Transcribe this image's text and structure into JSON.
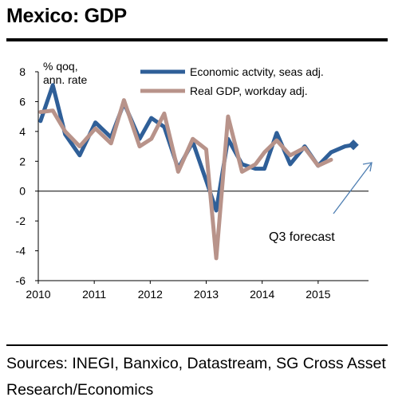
{
  "title": "Mexico: GDP",
  "source": "Sources: INEGI, Banxico, Datastream, SG Cross Asset Research/Economics",
  "chart_data": {
    "type": "line",
    "ylabel": "% qoq, ann. rate",
    "ylabel_lines": [
      "% qoq,",
      "ann. rate"
    ],
    "ylim": [
      -6,
      8
    ],
    "yticks": [
      8,
      6,
      4,
      2,
      0,
      -2,
      -4,
      -6
    ],
    "xlim": [
      2010,
      2015.9
    ],
    "xticks": [
      2010,
      2011,
      2012,
      2013,
      2014,
      2015
    ],
    "legend_position": "top",
    "series": [
      {
        "name": "Economic actvity,  seas adj.",
        "color": "#2f5f98",
        "x": [
          2010.04,
          2010.26,
          2010.48,
          2010.74,
          2011.02,
          2011.3,
          2011.53,
          2011.81,
          2012.02,
          2012.25,
          2012.5,
          2012.76,
          2013.0,
          2013.18,
          2013.39,
          2013.64,
          2013.88,
          2014.04,
          2014.26,
          2014.5,
          2014.76,
          2015.0,
          2015.23,
          2015.48,
          2015.63
        ],
        "y": [
          4.7,
          7.1,
          3.8,
          2.4,
          4.6,
          3.6,
          5.9,
          3.5,
          4.9,
          4.3,
          1.5,
          3.3,
          0.7,
          -1.3,
          3.5,
          1.8,
          1.5,
          1.5,
          3.9,
          1.8,
          3.0,
          1.7,
          2.6,
          3.0,
          3.1
        ]
      },
      {
        "name": "Real GDP, workday  adj.",
        "color": "#b8938a",
        "x": [
          2010.04,
          2010.26,
          2010.48,
          2010.74,
          2011.02,
          2011.3,
          2011.53,
          2011.81,
          2012.02,
          2012.25,
          2012.5,
          2012.76,
          2013.0,
          2013.18,
          2013.39,
          2013.64,
          2013.88,
          2014.04,
          2014.26,
          2014.5,
          2014.76,
          2015.0,
          2015.23
        ],
        "y": [
          5.3,
          5.4,
          4.0,
          3.0,
          4.2,
          3.2,
          6.1,
          3.0,
          3.5,
          5.2,
          1.3,
          3.5,
          2.8,
          -4.5,
          5.0,
          1.3,
          1.8,
          2.6,
          3.4,
          2.4,
          2.9,
          1.7,
          2.1
        ]
      }
    ],
    "forecast_point": {
      "x": 2015.63,
      "y": 3.1,
      "color": "#2f5f98"
    },
    "annotation": {
      "text": "Q3 forecast"
    }
  }
}
